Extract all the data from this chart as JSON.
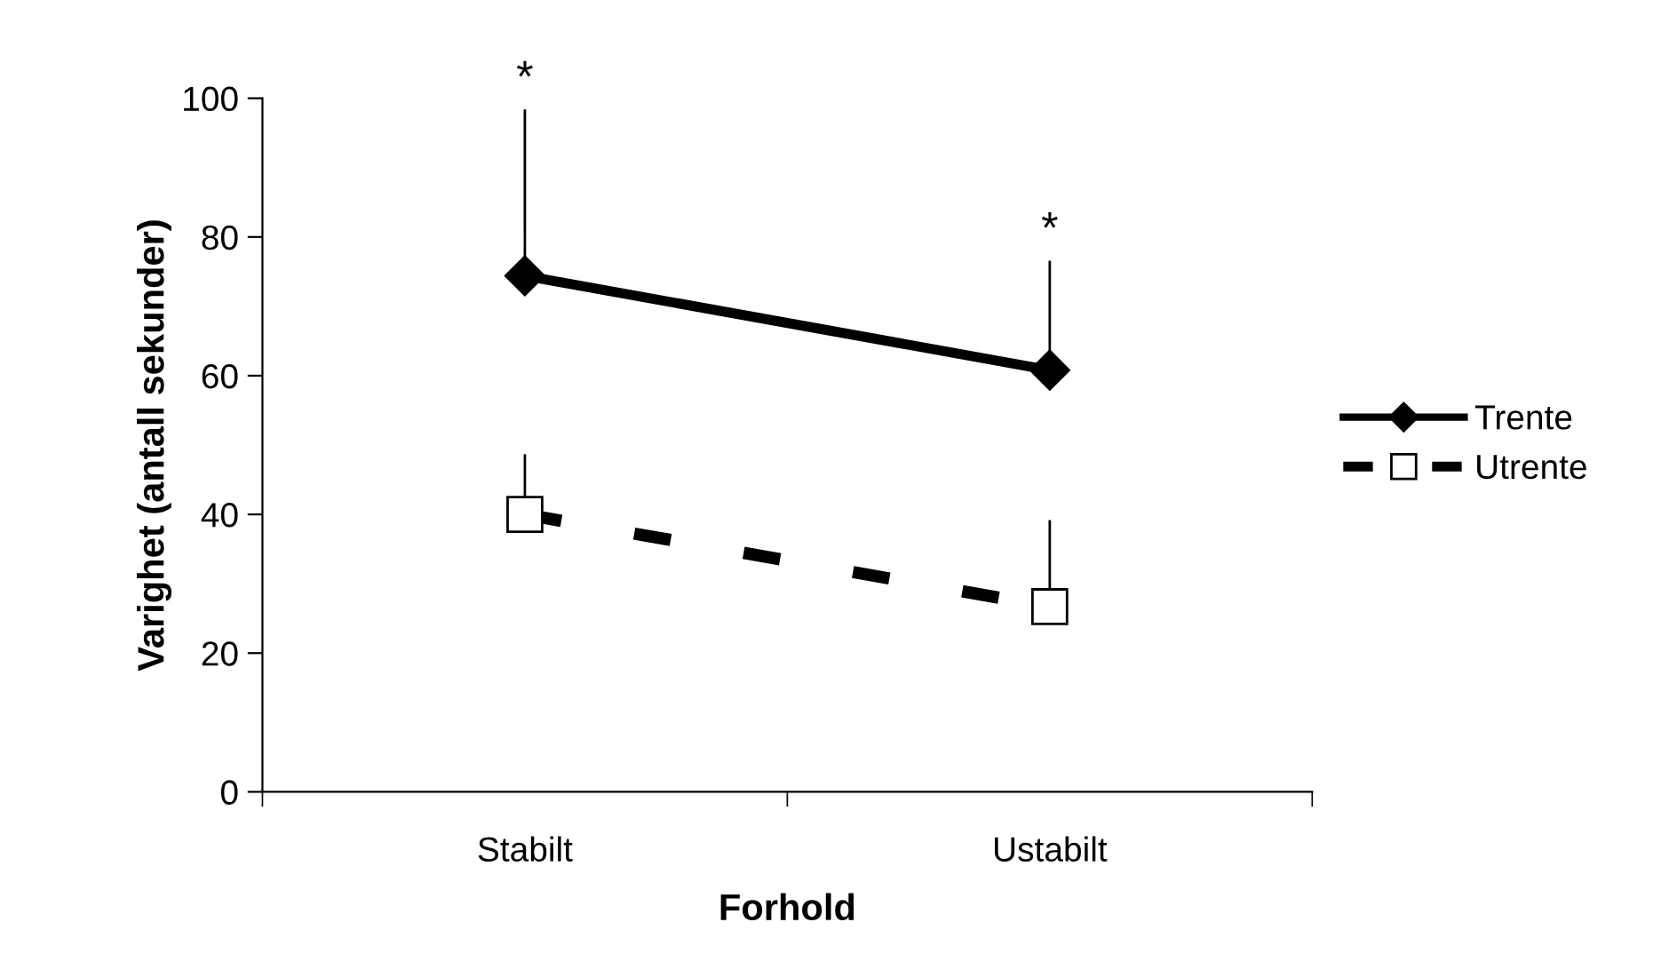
{
  "chart_data": {
    "type": "line",
    "xlabel": "Forhold",
    "ylabel": "Varighet (antall sekunder)",
    "categories": [
      "Stabilt",
      "Ustabilt"
    ],
    "series": [
      {
        "name": "Trente",
        "color": "#000000",
        "values": [
          74.4,
          60.8
        ],
        "errors": [
          [
            74.4,
            98.2
          ],
          [
            60.8,
            76.4
          ]
        ],
        "marker": "diamond",
        "line_style": "solid"
      },
      {
        "name": "Utrente",
        "color": "#000000",
        "values": [
          40,
          26.7
        ],
        "errors": [
          [
            40,
            48.5
          ],
          [
            26.7,
            39
          ]
        ],
        "marker": "square",
        "line_style": "dashed"
      }
    ],
    "ylim": [
      0,
      100
    ],
    "yticks": [
      0,
      20,
      40,
      60,
      80,
      100
    ],
    "grid": false,
    "legend": "right",
    "annotations": [
      "*",
      "*"
    ]
  }
}
